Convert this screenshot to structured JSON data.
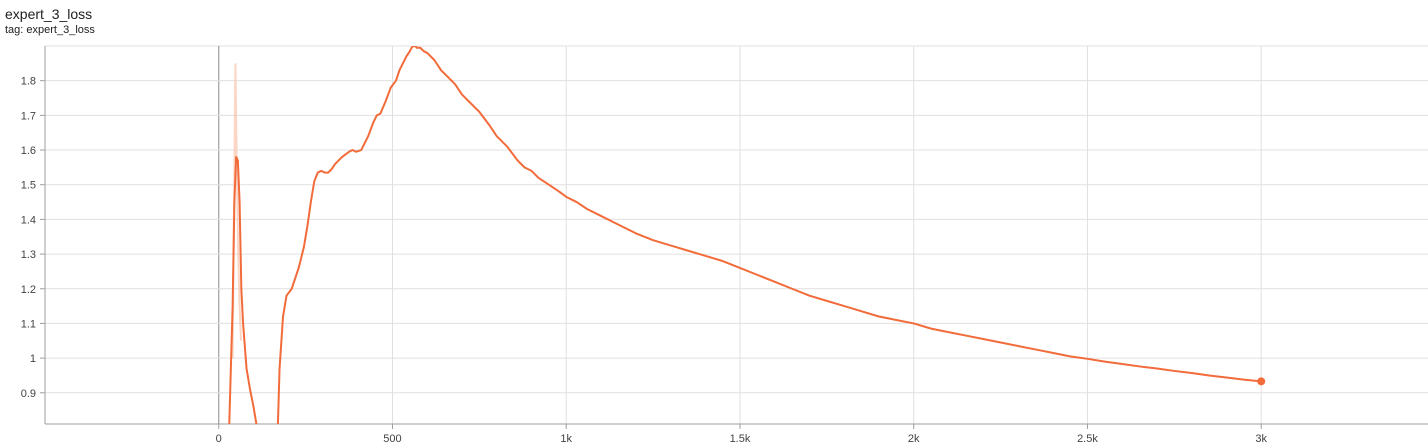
{
  "card": {
    "title": "expert_3_loss",
    "tag": "tag: expert_3_loss"
  },
  "colors": {
    "series": "#f26b3a",
    "raw": "#f9c4ad",
    "grid": "#e0e0e0",
    "axis": "#9e9e9e"
  },
  "chart_data": {
    "type": "line",
    "title": "expert_3_loss",
    "xlabel": "",
    "ylabel": "",
    "xlim": [
      -500,
      3480
    ],
    "ylim": [
      0.81,
      1.9
    ],
    "grid": true,
    "x_ticks": [
      {
        "value": 0,
        "label": "0"
      },
      {
        "value": 500,
        "label": "500"
      },
      {
        "value": 1000,
        "label": "1k"
      },
      {
        "value": 1500,
        "label": "1.5k"
      },
      {
        "value": 2000,
        "label": "2k"
      },
      {
        "value": 2500,
        "label": "2.5k"
      },
      {
        "value": 3000,
        "label": "3k"
      }
    ],
    "y_ticks": [
      {
        "value": 0.9,
        "label": "0.9"
      },
      {
        "value": 1.0,
        "label": "1"
      },
      {
        "value": 1.1,
        "label": "1.1"
      },
      {
        "value": 1.2,
        "label": "1.2"
      },
      {
        "value": 1.3,
        "label": "1.3"
      },
      {
        "value": 1.4,
        "label": "1.4"
      },
      {
        "value": 1.5,
        "label": "1.5"
      },
      {
        "value": 1.6,
        "label": "1.6"
      },
      {
        "value": 1.7,
        "label": "1.7"
      },
      {
        "value": 1.8,
        "label": "1.8"
      }
    ],
    "series": [
      {
        "segments": [
          {
            "x": [
              30,
              40,
              45,
              50,
              55,
              60,
              65,
              70,
              80,
              90,
              100,
              110
            ],
            "y": [
              0.8,
              1.15,
              1.45,
              1.58,
              1.57,
              1.45,
              1.2,
              1.1,
              0.97,
              0.91,
              0.86,
              0.8
            ]
          },
          {
            "x": [
              170,
              175,
              185,
              195,
              210,
              230,
              245,
              255,
              265,
              275,
              285,
              295,
              305,
              315,
              325,
              335,
              355,
              375,
              385,
              395,
              410,
              430,
              445,
              455,
              465,
              480,
              495,
              510,
              520,
              530,
              540,
              550,
              555,
              560,
              565,
              570,
              580,
              590,
              600,
              620,
              640,
              660,
              680,
              700,
              720,
              750,
              780,
              800,
              830,
              860,
              880,
              900,
              920,
              950,
              980,
              1000,
              1030,
              1060,
              1100,
              1150,
              1200,
              1250,
              1300,
              1350,
              1400,
              1450,
              1500,
              1550,
              1600,
              1650,
              1700,
              1750,
              1800,
              1850,
              1900,
              1950,
              2000,
              2050,
              2100,
              2150,
              2200,
              2250,
              2300,
              2350,
              2400,
              2450,
              2500,
              2550,
              2600,
              2650,
              2700,
              2750,
              2800,
              2850,
              2900,
              2950,
              3000
            ],
            "y": [
              0.8,
              0.97,
              1.12,
              1.18,
              1.2,
              1.26,
              1.32,
              1.38,
              1.45,
              1.51,
              1.535,
              1.54,
              1.535,
              1.535,
              1.545,
              1.56,
              1.58,
              1.595,
              1.6,
              1.595,
              1.6,
              1.64,
              1.68,
              1.7,
              1.705,
              1.74,
              1.78,
              1.8,
              1.83,
              1.85,
              1.87,
              1.885,
              1.895,
              1.9,
              1.9,
              1.895,
              1.895,
              1.885,
              1.88,
              1.86,
              1.83,
              1.81,
              1.79,
              1.76,
              1.74,
              1.71,
              1.67,
              1.64,
              1.61,
              1.57,
              1.55,
              1.54,
              1.52,
              1.5,
              1.48,
              1.465,
              1.45,
              1.43,
              1.41,
              1.385,
              1.36,
              1.34,
              1.325,
              1.31,
              1.295,
              1.28,
              1.26,
              1.24,
              1.22,
              1.2,
              1.18,
              1.165,
              1.15,
              1.135,
              1.12,
              1.11,
              1.1,
              1.085,
              1.075,
              1.065,
              1.055,
              1.045,
              1.035,
              1.025,
              1.015,
              1.005,
              0.998,
              0.99,
              0.983,
              0.976,
              0.97,
              0.963,
              0.957,
              0.95,
              0.944,
              0.938,
              0.933
            ]
          }
        ],
        "raw_spike": {
          "x": [
            40,
            44,
            48,
            52,
            56,
            60,
            64
          ],
          "y": [
            1.0,
            1.45,
            1.85,
            1.55,
            1.3,
            1.15,
            1.05
          ]
        },
        "last_point": {
          "x": 3000,
          "y": 0.933
        }
      }
    ]
  }
}
